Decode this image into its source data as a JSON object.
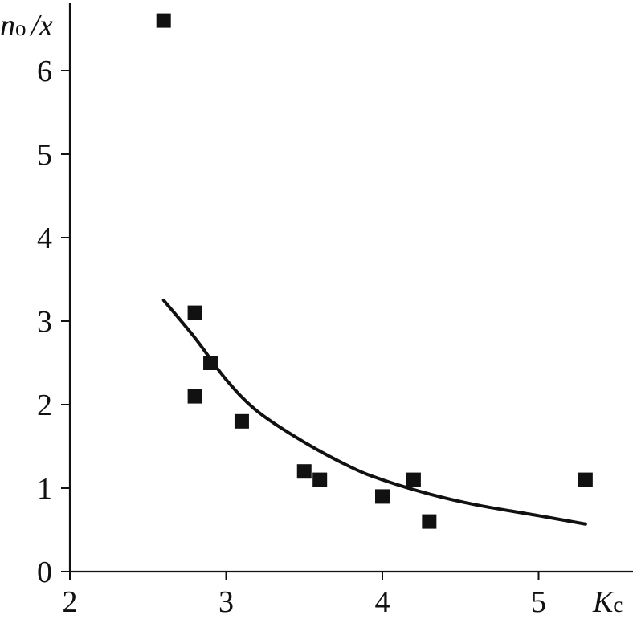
{
  "chart_data": {
    "type": "scatter",
    "xlabel": {
      "main": "K",
      "sub": "c"
    },
    "ylabel": {
      "main": "n",
      "sub": "o",
      "tail": "/x"
    },
    "xlim": [
      2,
      5.6
    ],
    "ylim": [
      0,
      6.85
    ],
    "xticks": [
      2,
      3,
      4,
      5
    ],
    "yticks": [
      0,
      1,
      2,
      3,
      4,
      5,
      6
    ],
    "grid": false,
    "colors": {
      "points": "#111111",
      "curve": "#111111",
      "axes": "#111111"
    },
    "series": [
      {
        "type": "scatter",
        "marker": "square",
        "points": [
          {
            "x": 2.6,
            "y": 6.6
          },
          {
            "x": 2.8,
            "y": 3.1
          },
          {
            "x": 2.9,
            "y": 2.5
          },
          {
            "x": 2.8,
            "y": 2.1
          },
          {
            "x": 3.1,
            "y": 1.8
          },
          {
            "x": 3.5,
            "y": 1.2
          },
          {
            "x": 3.6,
            "y": 1.1
          },
          {
            "x": 4.0,
            "y": 0.9
          },
          {
            "x": 4.2,
            "y": 1.1
          },
          {
            "x": 4.3,
            "y": 0.6
          },
          {
            "x": 5.3,
            "y": 1.1
          }
        ]
      },
      {
        "type": "line",
        "smooth": true,
        "points": [
          {
            "x": 2.6,
            "y": 3.25
          },
          {
            "x": 2.8,
            "y": 2.8
          },
          {
            "x": 3.0,
            "y": 2.3
          },
          {
            "x": 3.2,
            "y": 1.92
          },
          {
            "x": 3.5,
            "y": 1.55
          },
          {
            "x": 3.8,
            "y": 1.25
          },
          {
            "x": 4.0,
            "y": 1.1
          },
          {
            "x": 4.3,
            "y": 0.93
          },
          {
            "x": 4.6,
            "y": 0.8
          },
          {
            "x": 5.0,
            "y": 0.67
          },
          {
            "x": 5.3,
            "y": 0.57
          }
        ]
      }
    ]
  }
}
